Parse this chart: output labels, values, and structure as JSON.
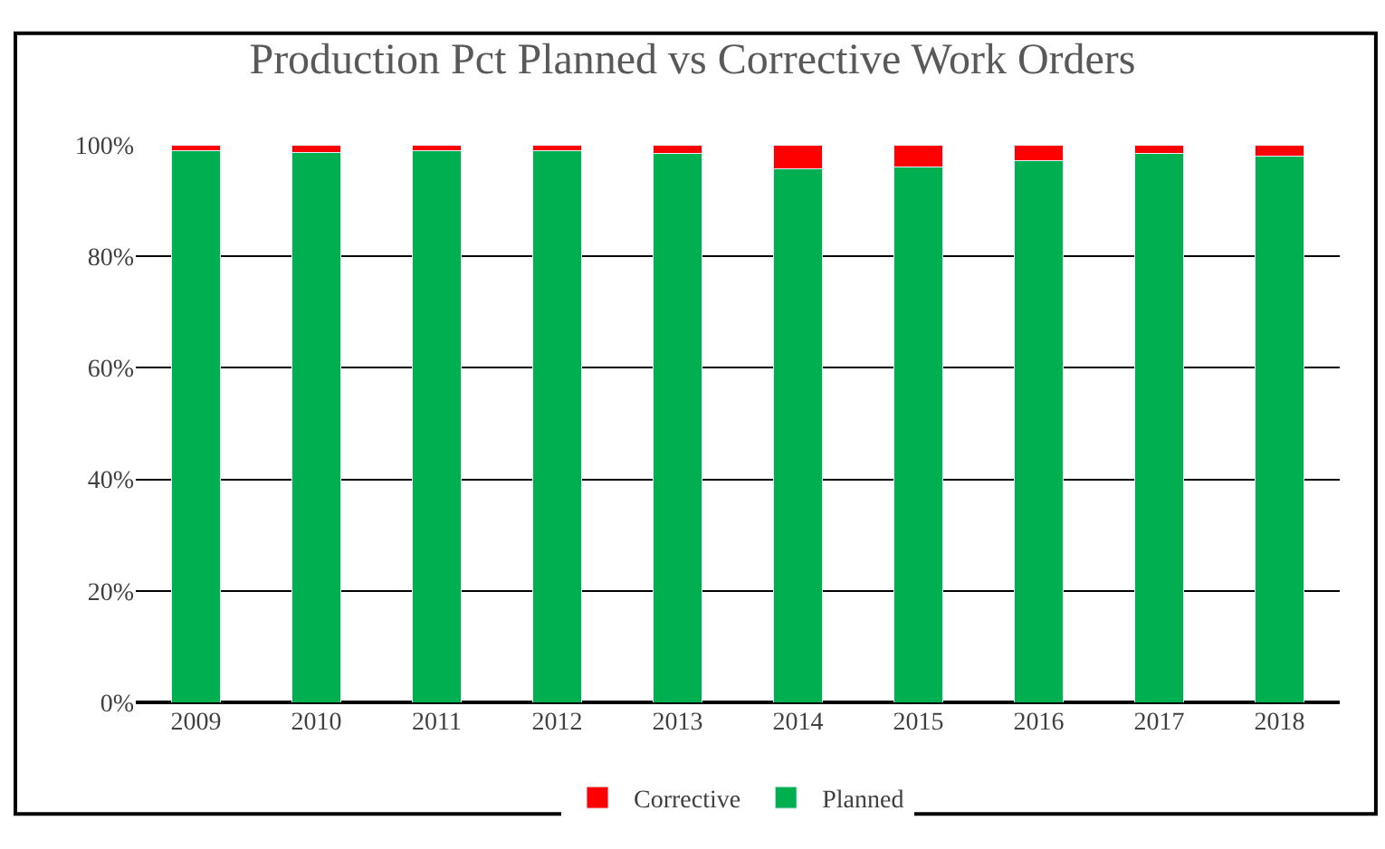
{
  "chart_data": {
    "type": "bar",
    "title": "Production Pct Planned vs Corrective Work Orders",
    "categories": [
      "2009",
      "2010",
      "2011",
      "2012",
      "2013",
      "2014",
      "2015",
      "2016",
      "2017",
      "2018"
    ],
    "stacked": true,
    "series": [
      {
        "name": "Planned",
        "color": "#00b050",
        "values": [
          99,
          98.6,
          99,
          99,
          98.5,
          95.7,
          96,
          97.2,
          98.5,
          98
        ]
      },
      {
        "name": "Corrective",
        "color": "#ff0000",
        "values": [
          1,
          1.4,
          1,
          1,
          1.5,
          4.3,
          4,
          2.8,
          1.5,
          2
        ]
      }
    ],
    "ylim": [
      0,
      100
    ],
    "yticks": [
      {
        "value": 0,
        "label": "0%"
      },
      {
        "value": 20,
        "label": "20%"
      },
      {
        "value": 40,
        "label": "40%"
      },
      {
        "value": 60,
        "label": "60%"
      },
      {
        "value": 80,
        "label": "80%"
      },
      {
        "value": 100,
        "label": "100%"
      }
    ],
    "grid": "y",
    "legend": "bottom"
  }
}
